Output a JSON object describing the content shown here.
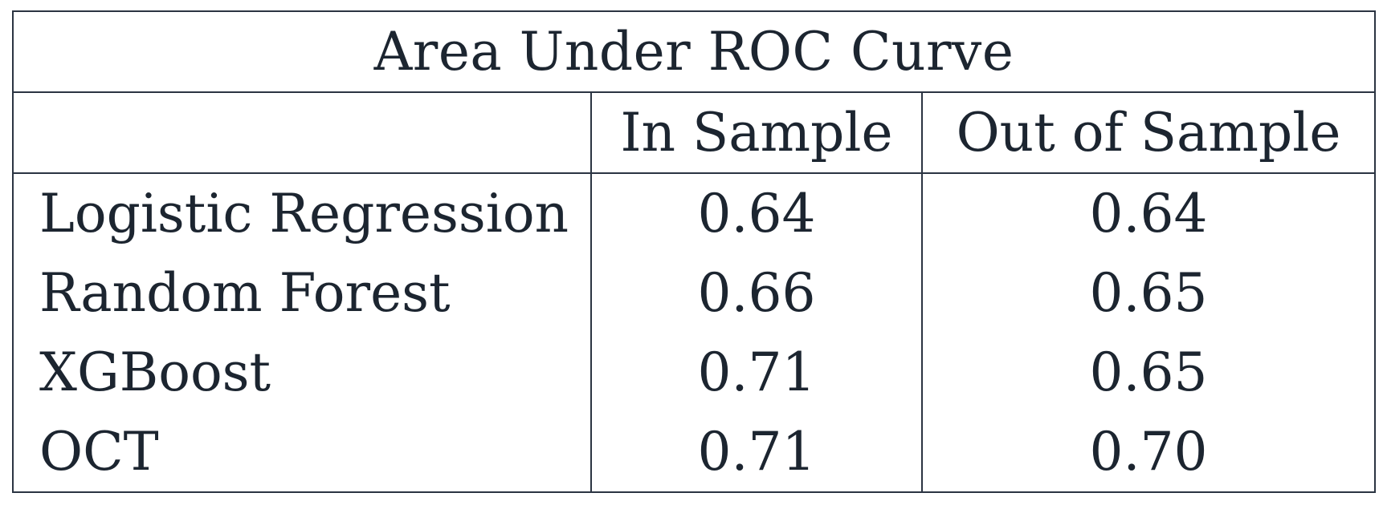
{
  "table": {
    "title": "Area Under ROC Curve",
    "columns": [
      "",
      "In Sample",
      "Out of Sample"
    ],
    "rows": [
      {
        "model": "Logistic Regression",
        "in_sample": "0.64",
        "out_of_sample": "0.64"
      },
      {
        "model": "Random Forest",
        "in_sample": "0.66",
        "out_of_sample": "0.65"
      },
      {
        "model": "XGBoost",
        "in_sample": "0.71",
        "out_of_sample": "0.65"
      },
      {
        "model": "OCT",
        "in_sample": "0.71",
        "out_of_sample": "0.70"
      }
    ]
  },
  "colors": {
    "text": "#1c2530",
    "border": "#2b3442",
    "background": "#ffffff"
  }
}
